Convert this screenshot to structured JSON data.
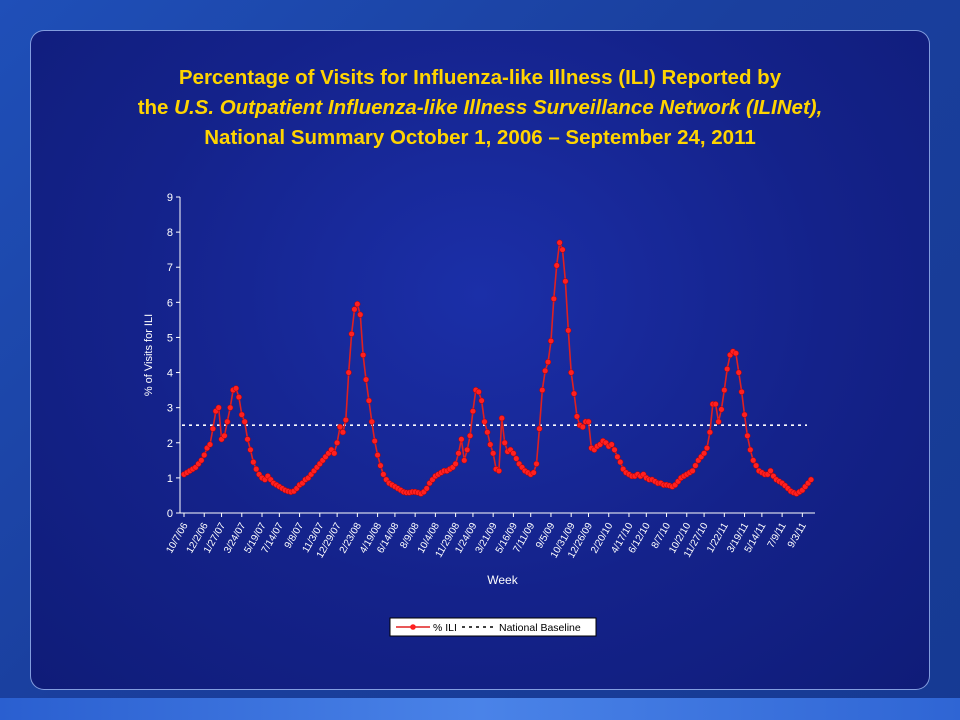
{
  "title": {
    "line1": "Percentage of Visits for Influenza-like Illness (ILI) Reported by",
    "line2_prefix": "the ",
    "line2_italic": "U.S. Outpatient Influenza-like Illness Surveillance Network (ILINet),",
    "line3": "National Summary October 1, 2006 – September 24, 2011"
  },
  "colors": {
    "title": "#ffd400",
    "series_line": "#e02020",
    "series_marker": "#ff2020",
    "baseline": "#ffffff",
    "plot_background": "#ffffff"
  },
  "chart_data": {
    "type": "line",
    "xlabel": "Week",
    "ylabel": "% of Visits for ILI",
    "ylim": [
      0,
      9
    ],
    "yticks": [
      "0",
      "1",
      "2",
      "3",
      "4",
      "5",
      "6",
      "7",
      "8",
      "9"
    ],
    "xtick_labels": [
      "10/7/06",
      "12/2/06",
      "1/27/07",
      "3/24/07",
      "5/19/07",
      "7/14/07",
      "9/8/07",
      "11/3/07",
      "12/29/07",
      "2/23/08",
      "4/19/08",
      "6/14/08",
      "8/9/08",
      "10/4/08",
      "11/29/08",
      "1/24/09",
      "3/21/09",
      "5/16/09",
      "7/11/09",
      "9/5/09",
      "10/31/09",
      "12/26/09",
      "2/20/10",
      "4/17/10",
      "6/12/10",
      "8/7/10",
      "10/2/10",
      "11/27/10",
      "1/22/11",
      "3/19/11",
      "5/14/11",
      "7/9/11",
      "9/3/11"
    ],
    "legend_placement": "bottom",
    "grid": false,
    "series": [
      {
        "name": "% ILI",
        "style": "line-with-markers",
        "values": [
          1.1,
          1.15,
          1.2,
          1.25,
          1.3,
          1.4,
          1.5,
          1.65,
          1.85,
          1.95,
          2.4,
          2.9,
          3.0,
          2.1,
          2.2,
          2.6,
          3.0,
          3.5,
          3.55,
          3.3,
          2.8,
          2.6,
          2.1,
          1.8,
          1.45,
          1.25,
          1.1,
          1.0,
          0.95,
          1.05,
          0.95,
          0.85,
          0.8,
          0.75,
          0.7,
          0.65,
          0.62,
          0.6,
          0.62,
          0.7,
          0.8,
          0.85,
          0.95,
          1.0,
          1.1,
          1.2,
          1.3,
          1.4,
          1.5,
          1.6,
          1.7,
          1.8,
          1.7,
          2.0,
          2.45,
          2.3,
          2.65,
          4.0,
          5.1,
          5.8,
          5.95,
          5.65,
          4.5,
          3.8,
          3.2,
          2.6,
          2.05,
          1.65,
          1.35,
          1.1,
          0.95,
          0.85,
          0.8,
          0.75,
          0.7,
          0.65,
          0.6,
          0.58,
          0.58,
          0.6,
          0.6,
          0.58,
          0.55,
          0.6,
          0.7,
          0.85,
          0.95,
          1.05,
          1.1,
          1.15,
          1.2,
          1.2,
          1.25,
          1.3,
          1.4,
          1.7,
          2.1,
          1.5,
          1.8,
          2.2,
          2.9,
          3.5,
          3.45,
          3.2,
          2.6,
          2.3,
          1.95,
          1.7,
          1.25,
          1.2,
          2.7,
          2.0,
          1.75,
          1.8,
          1.7,
          1.55,
          1.4,
          1.3,
          1.2,
          1.15,
          1.1,
          1.15,
          1.4,
          2.4,
          3.5,
          4.05,
          4.3,
          4.9,
          6.1,
          7.05,
          7.7,
          7.5,
          6.6,
          5.2,
          4.0,
          3.4,
          2.75,
          2.5,
          2.45,
          2.6,
          2.6,
          1.85,
          1.8,
          1.9,
          1.95,
          2.05,
          2.0,
          1.9,
          1.95,
          1.8,
          1.6,
          1.45,
          1.25,
          1.15,
          1.1,
          1.05,
          1.05,
          1.1,
          1.05,
          1.1,
          1.0,
          0.95,
          0.95,
          0.9,
          0.85,
          0.85,
          0.8,
          0.8,
          0.78,
          0.75,
          0.8,
          0.9,
          1.0,
          1.05,
          1.1,
          1.15,
          1.2,
          1.35,
          1.5,
          1.6,
          1.7,
          1.85,
          2.3,
          3.1,
          3.1,
          2.6,
          2.95,
          3.5,
          4.1,
          4.5,
          4.6,
          4.55,
          4.0,
          3.45,
          2.8,
          2.2,
          1.8,
          1.5,
          1.35,
          1.2,
          1.15,
          1.1,
          1.1,
          1.2,
          1.05,
          0.95,
          0.9,
          0.85,
          0.78,
          0.7,
          0.62,
          0.58,
          0.55,
          0.6,
          0.65,
          0.75,
          0.85,
          0.95
        ]
      },
      {
        "name": "National Baseline",
        "style": "dashed",
        "value": 2.5
      }
    ]
  }
}
